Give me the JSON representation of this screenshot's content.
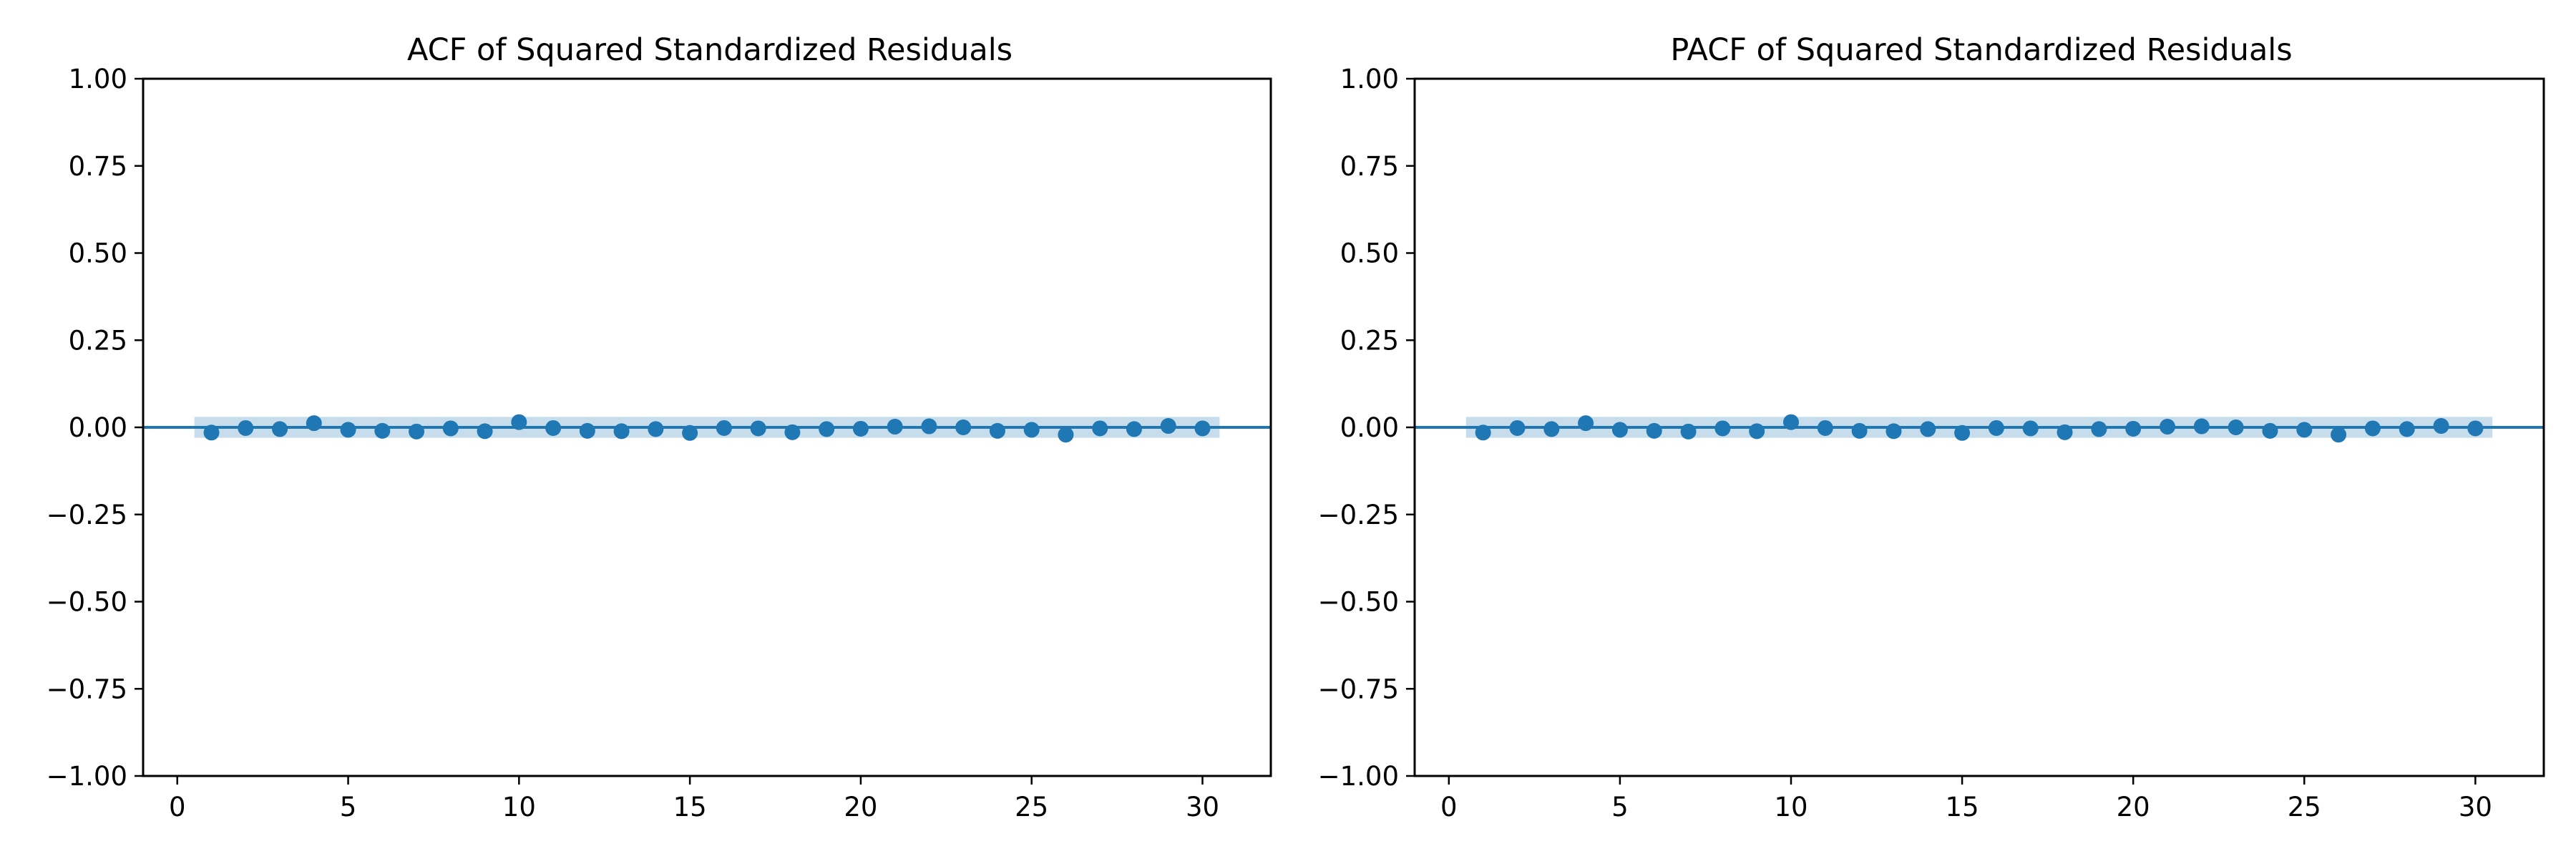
{
  "colors": {
    "series": "#1f77b4",
    "confidence_band": "#1f77b4",
    "axes": "#000000",
    "background": "#ffffff"
  },
  "chart_data": [
    {
      "type": "scatter",
      "style": "stem-plot (correlogram)",
      "title": "ACF of Squared Standardized Residuals",
      "xlabel": "",
      "ylabel": "",
      "xlim": [
        -1,
        32
      ],
      "ylim": [
        -1.0,
        1.0
      ],
      "x_ticks": [
        "0",
        "5",
        "10",
        "15",
        "20",
        "25",
        "30"
      ],
      "y_ticks": [
        "−1.00",
        "−0.75",
        "−0.50",
        "−0.25",
        "0.00",
        "0.25",
        "0.50",
        "0.75",
        "1.00"
      ],
      "grid": false,
      "lags": [
        1,
        2,
        3,
        4,
        5,
        6,
        7,
        8,
        9,
        10,
        11,
        12,
        13,
        14,
        15,
        16,
        17,
        18,
        19,
        20,
        21,
        22,
        23,
        24,
        25,
        26,
        27,
        28,
        29,
        30
      ],
      "values": [
        -0.015,
        -0.002,
        -0.005,
        0.012,
        -0.007,
        -0.01,
        -0.012,
        -0.003,
        -0.011,
        0.015,
        -0.002,
        -0.01,
        -0.011,
        -0.005,
        -0.016,
        -0.002,
        -0.003,
        -0.014,
        -0.005,
        -0.004,
        0.002,
        0.003,
        0.0,
        -0.01,
        -0.007,
        -0.021,
        -0.003,
        -0.005,
        0.004,
        -0.003
      ],
      "confidence_band": [
        -0.03,
        0.03
      ],
      "zero_line": 0
    },
    {
      "type": "scatter",
      "style": "stem-plot (correlogram)",
      "title": "PACF of Squared Standardized Residuals",
      "xlabel": "",
      "ylabel": "",
      "xlim": [
        -1,
        32
      ],
      "ylim": [
        -1.0,
        1.0
      ],
      "x_ticks": [
        "0",
        "5",
        "10",
        "15",
        "20",
        "25",
        "30"
      ],
      "y_ticks": [
        "−1.00",
        "−0.75",
        "−0.50",
        "−0.25",
        "0.00",
        "0.25",
        "0.50",
        "0.75",
        "1.00"
      ],
      "grid": false,
      "lags": [
        1,
        2,
        3,
        4,
        5,
        6,
        7,
        8,
        9,
        10,
        11,
        12,
        13,
        14,
        15,
        16,
        17,
        18,
        19,
        20,
        21,
        22,
        23,
        24,
        25,
        26,
        27,
        28,
        29,
        30
      ],
      "values": [
        -0.015,
        -0.002,
        -0.005,
        0.012,
        -0.007,
        -0.01,
        -0.012,
        -0.003,
        -0.011,
        0.015,
        -0.002,
        -0.01,
        -0.011,
        -0.005,
        -0.016,
        -0.002,
        -0.003,
        -0.014,
        -0.005,
        -0.004,
        0.002,
        0.003,
        0.0,
        -0.01,
        -0.007,
        -0.021,
        -0.003,
        -0.005,
        0.004,
        -0.003
      ],
      "confidence_band": [
        -0.03,
        0.03
      ],
      "zero_line": 0
    }
  ]
}
